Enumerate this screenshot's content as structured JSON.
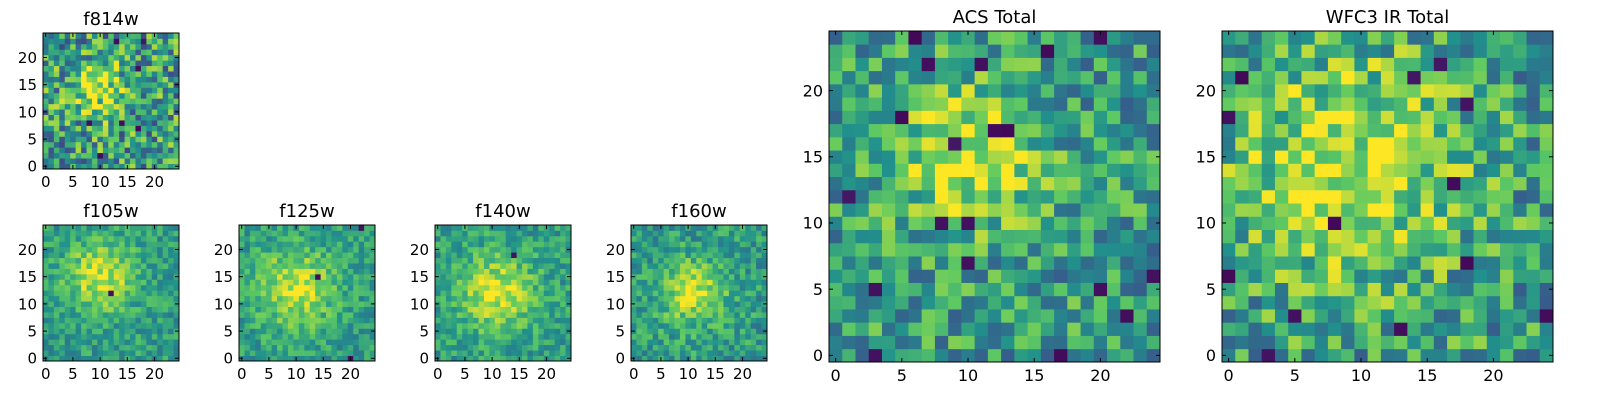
{
  "colormap": [
    "#440154",
    "#3b528b",
    "#21918c",
    "#5ec962",
    "#fde725"
  ],
  "chart_data": [
    {
      "id": "f814w",
      "type": "heatmap",
      "title": "f814w",
      "nx": 25,
      "ny": 25,
      "xlim": [
        -0.5,
        24.5
      ],
      "ylim": [
        -0.5,
        24.5
      ],
      "xticks": [
        0,
        5,
        10,
        15,
        20
      ],
      "yticks": [
        0,
        5,
        10,
        15,
        20
      ],
      "peak": [
        9.5,
        14.5
      ],
      "peak_width": 3.5,
      "seed": 11,
      "noise": 0.34,
      "holes": 10
    },
    {
      "id": "f105w",
      "type": "heatmap",
      "title": "f105w",
      "nx": 25,
      "ny": 25,
      "xlim": [
        -0.5,
        24.5
      ],
      "ylim": [
        -0.5,
        24.5
      ],
      "xticks": [
        0,
        5,
        10,
        15,
        20
      ],
      "yticks": [
        0,
        5,
        10,
        15,
        20
      ],
      "peak": [
        10,
        15
      ],
      "peak_width": 4.5,
      "seed": 23,
      "noise": 0.16,
      "holes": 2
    },
    {
      "id": "f125w",
      "type": "heatmap",
      "title": "f125w",
      "nx": 25,
      "ny": 25,
      "xlim": [
        -0.5,
        24.5
      ],
      "ylim": [
        -0.5,
        24.5
      ],
      "xticks": [
        0,
        5,
        10,
        15,
        20
      ],
      "yticks": [
        0,
        5,
        10,
        15,
        20
      ],
      "peak": [
        10,
        13
      ],
      "peak_width": 5.0,
      "seed": 37,
      "noise": 0.16,
      "holes": 3
    },
    {
      "id": "f140w",
      "type": "heatmap",
      "title": "f140w",
      "nx": 25,
      "ny": 25,
      "xlim": [
        -0.5,
        24.5
      ],
      "ylim": [
        -0.5,
        24.5
      ],
      "xticks": [
        0,
        5,
        10,
        15,
        20
      ],
      "yticks": [
        0,
        5,
        10,
        15,
        20
      ],
      "peak": [
        11,
        12
      ],
      "peak_width": 5.0,
      "seed": 41,
      "noise": 0.16,
      "holes": 1
    },
    {
      "id": "f160w",
      "type": "heatmap",
      "title": "f160w",
      "nx": 25,
      "ny": 25,
      "xlim": [
        -0.5,
        24.5
      ],
      "ylim": [
        -0.5,
        24.5
      ],
      "xticks": [
        0,
        5,
        10,
        15,
        20
      ],
      "yticks": [
        0,
        5,
        10,
        15,
        20
      ],
      "peak": [
        11,
        12
      ],
      "peak_width": 4.0,
      "seed": 53,
      "noise": 0.18,
      "holes": 4
    },
    {
      "id": "acs",
      "type": "heatmap",
      "title": "ACS Total",
      "nx": 25,
      "ny": 25,
      "xlim": [
        -0.5,
        24.5
      ],
      "ylim": [
        -0.5,
        24.5
      ],
      "xticks": [
        0,
        5,
        10,
        15,
        20
      ],
      "yticks": [
        0,
        5,
        10,
        15,
        20
      ],
      "peak": [
        10,
        15
      ],
      "peak_width": 4.0,
      "seed": 67,
      "noise": 0.26,
      "holes": 14
    },
    {
      "id": "wfc3",
      "type": "heatmap",
      "title": "WFC3 IR Total",
      "nx": 25,
      "ny": 25,
      "xlim": [
        -0.5,
        24.5
      ],
      "ylim": [
        -0.5,
        24.5
      ],
      "xticks": [
        0,
        5,
        10,
        15,
        20
      ],
      "yticks": [
        0,
        5,
        10,
        15,
        20
      ],
      "peak": [
        9,
        14
      ],
      "peak_width": 6.0,
      "seed": 79,
      "noise": 0.28,
      "holes": 16
    }
  ]
}
